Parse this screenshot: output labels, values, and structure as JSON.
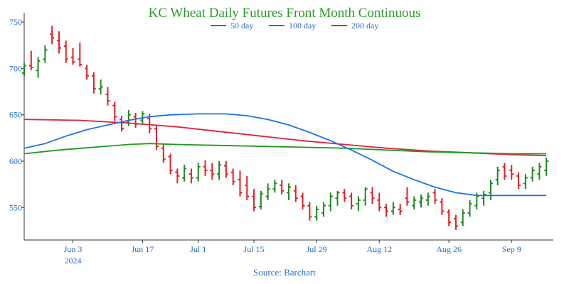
{
  "colors": {
    "title": "#2a9a2a",
    "axis_text": "#1f6fd1",
    "axis_line": "#333333",
    "up_bar": "#1e8a1e",
    "down_bar": "#e0202a",
    "ma50": "#1a73e8",
    "ma100": "#1e9a1e",
    "ma200": "#dc2440"
  },
  "chart_data": {
    "type": "line",
    "subtype": "ohlc-with-moving-averages",
    "title": "KC Wheat Daily Futures Front Month Continuous",
    "source": "Source: Barchart",
    "legend": {
      "placement": "top-center",
      "entries": [
        {
          "key": "ma50",
          "label": "50 day"
        },
        {
          "key": "ma100",
          "label": "100 day"
        },
        {
          "key": "ma200",
          "label": "200 day"
        }
      ]
    },
    "x_range": [
      0,
      76
    ],
    "y_range": [
      515,
      760
    ],
    "y_ticks": [
      550,
      600,
      650,
      700,
      750
    ],
    "grid": false,
    "x_ticks": [
      {
        "x": 7,
        "label": "Jun 3",
        "sublabel": "2024"
      },
      {
        "x": 17,
        "label": "Jun 17",
        "sublabel": ""
      },
      {
        "x": 25,
        "label": "Jul 1",
        "sublabel": ""
      },
      {
        "x": 33,
        "label": "Jul 15",
        "sublabel": ""
      },
      {
        "x": 42,
        "label": "Jul 29",
        "sublabel": ""
      },
      {
        "x": 51,
        "label": "Aug 12",
        "sublabel": ""
      },
      {
        "x": 61,
        "label": "Aug 26",
        "sublabel": ""
      },
      {
        "x": 70,
        "label": "Sep 9",
        "sublabel": ""
      }
    ],
    "ohlc": [
      [
        0,
        695,
        706,
        692,
        703
      ],
      [
        1,
        703,
        719,
        698,
        701
      ],
      [
        2,
        698,
        712,
        690,
        708
      ],
      [
        3,
        710,
        725,
        706,
        720
      ],
      [
        4,
        737,
        746,
        726,
        733
      ],
      [
        5,
        730,
        740,
        716,
        722
      ],
      [
        6,
        724,
        730,
        706,
        710
      ],
      [
        7,
        712,
        722,
        704,
        707
      ],
      [
        8,
        710,
        728,
        702,
        704
      ],
      [
        9,
        700,
        704,
        688,
        692
      ],
      [
        10,
        692,
        696,
        673,
        678
      ],
      [
        11,
        678,
        688,
        672,
        680
      ],
      [
        12,
        672,
        680,
        660,
        665
      ],
      [
        13,
        660,
        664,
        643,
        648
      ],
      [
        14,
        645,
        649,
        632,
        635
      ],
      [
        15,
        642,
        655,
        638,
        650
      ],
      [
        16,
        648,
        652,
        636,
        640
      ],
      [
        17,
        644,
        654,
        640,
        651
      ],
      [
        18,
        646,
        651,
        630,
        635
      ],
      [
        19,
        635,
        638,
        612,
        616
      ],
      [
        20,
        614,
        618,
        598,
        602
      ],
      [
        21,
        605,
        608,
        586,
        590
      ],
      [
        22,
        588,
        592,
        576,
        584
      ],
      [
        23,
        582,
        596,
        578,
        592
      ],
      [
        24,
        586,
        592,
        576,
        582
      ],
      [
        25,
        582,
        598,
        578,
        594
      ],
      [
        26,
        594,
        601,
        584,
        590
      ],
      [
        27,
        590,
        598,
        580,
        586
      ],
      [
        28,
        586,
        600,
        580,
        596
      ],
      [
        29,
        595,
        600,
        582,
        586
      ],
      [
        30,
        588,
        592,
        574,
        578
      ],
      [
        31,
        580,
        590,
        562,
        566
      ],
      [
        32,
        574,
        584,
        558,
        562
      ],
      [
        33,
        562,
        570,
        546,
        550
      ],
      [
        34,
        551,
        568,
        548,
        565
      ],
      [
        35,
        562,
        576,
        558,
        570
      ],
      [
        36,
        570,
        580,
        566,
        576
      ],
      [
        37,
        574,
        580,
        564,
        568
      ],
      [
        38,
        566,
        576,
        558,
        572
      ],
      [
        39,
        568,
        574,
        556,
        560
      ],
      [
        40,
        562,
        566,
        548,
        552
      ],
      [
        41,
        552,
        556,
        536,
        540
      ],
      [
        42,
        540,
        552,
        536,
        548
      ],
      [
        43,
        544,
        556,
        540,
        552
      ],
      [
        44,
        552,
        566,
        546,
        562
      ],
      [
        45,
        560,
        568,
        552,
        566
      ],
      [
        46,
        566,
        570,
        556,
        560
      ],
      [
        47,
        562,
        566,
        548,
        552
      ],
      [
        48,
        554,
        562,
        546,
        558
      ],
      [
        49,
        558,
        572,
        552,
        570
      ],
      [
        50,
        566,
        572,
        554,
        560
      ],
      [
        51,
        558,
        566,
        546,
        550
      ],
      [
        52,
        550,
        554,
        540,
        546
      ],
      [
        53,
        546,
        556,
        542,
        550
      ],
      [
        54,
        548,
        554,
        542,
        546
      ],
      [
        55,
        560,
        572,
        552,
        556
      ],
      [
        56,
        552,
        562,
        548,
        558
      ],
      [
        57,
        556,
        564,
        550,
        560
      ],
      [
        58,
        558,
        566,
        552,
        562
      ],
      [
        59,
        566,
        570,
        554,
        558
      ],
      [
        60,
        556,
        560,
        542,
        546
      ],
      [
        61,
        545,
        548,
        530,
        534
      ],
      [
        62,
        538,
        542,
        526,
        530
      ],
      [
        63,
        534,
        548,
        530,
        544
      ],
      [
        64,
        544,
        558,
        540,
        554
      ],
      [
        65,
        552,
        566,
        548,
        562
      ],
      [
        66,
        560,
        568,
        552,
        564
      ],
      [
        67,
        566,
        580,
        558,
        576
      ],
      [
        68,
        580,
        594,
        574,
        590
      ],
      [
        69,
        594,
        598,
        580,
        584
      ],
      [
        70,
        590,
        596,
        580,
        586
      ],
      [
        71,
        584,
        588,
        570,
        574
      ],
      [
        72,
        576,
        586,
        570,
        582
      ],
      [
        73,
        582,
        594,
        578,
        590
      ],
      [
        74,
        586,
        598,
        580,
        594
      ],
      [
        75,
        590,
        604,
        584,
        600
      ]
    ],
    "ma50": [
      [
        0,
        614
      ],
      [
        3,
        619
      ],
      [
        6,
        627
      ],
      [
        9,
        634
      ],
      [
        12,
        639
      ],
      [
        15,
        644
      ],
      [
        18,
        648
      ],
      [
        21,
        650
      ],
      [
        25,
        651
      ],
      [
        29,
        651
      ],
      [
        32,
        649
      ],
      [
        35,
        645
      ],
      [
        38,
        639
      ],
      [
        41,
        631
      ],
      [
        44,
        622
      ],
      [
        47,
        612
      ],
      [
        50,
        601
      ],
      [
        53,
        589
      ],
      [
        56,
        580
      ],
      [
        59,
        572
      ],
      [
        62,
        566
      ],
      [
        65,
        563
      ],
      [
        68,
        563
      ],
      [
        72,
        563
      ],
      [
        75,
        563
      ]
    ],
    "ma100": [
      [
        0,
        608
      ],
      [
        5,
        612
      ],
      [
        10,
        615
      ],
      [
        15,
        618
      ],
      [
        18,
        619
      ],
      [
        22,
        618
      ],
      [
        28,
        617
      ],
      [
        34,
        616
      ],
      [
        40,
        615
      ],
      [
        46,
        614
      ],
      [
        52,
        612
      ],
      [
        58,
        610
      ],
      [
        64,
        609
      ],
      [
        70,
        608
      ],
      [
        75,
        608
      ]
    ],
    "ma200": [
      [
        0,
        645
      ],
      [
        8,
        644
      ],
      [
        15,
        641
      ],
      [
        22,
        637
      ],
      [
        28,
        632
      ],
      [
        34,
        627
      ],
      [
        40,
        622
      ],
      [
        46,
        618
      ],
      [
        52,
        614
      ],
      [
        58,
        611
      ],
      [
        64,
        609
      ],
      [
        70,
        607
      ],
      [
        75,
        606
      ]
    ]
  }
}
